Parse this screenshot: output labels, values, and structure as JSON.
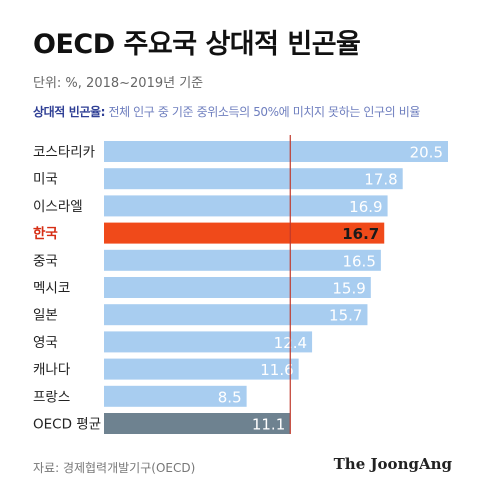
{
  "header": {
    "title": "OECD 주요국 상대적 빈곤율",
    "unit_note": "단위: %, 2018~2019년 기준",
    "definition_term": "상대적 빈곤율:",
    "definition_text": " 전체 인구 중 기준 중위소득의 50%에 미치지 못하는 인구의 비율"
  },
  "chart_data": {
    "type": "bar",
    "orientation": "horizontal",
    "title": "OECD 주요국 상대적 빈곤율",
    "xlabel": "",
    "ylabel": "",
    "xlim": [
      0,
      20.5
    ],
    "reference_line": {
      "value": 11.1,
      "color": "#c0392b"
    },
    "categories": [
      "코스타리카",
      "미국",
      "이스라엘",
      "한국",
      "중국",
      "멕시코",
      "일본",
      "영국",
      "캐나다",
      "프랑스",
      "OECD 평균"
    ],
    "values": [
      20.5,
      17.8,
      16.9,
      16.7,
      16.5,
      15.9,
      15.7,
      12.4,
      11.6,
      8.5,
      11.1
    ],
    "value_labels": [
      "20.5",
      "17.8",
      "16.9",
      "16.7",
      "16.5",
      "15.9",
      "15.7",
      "12.4",
      "11.6",
      "8.5",
      "11.1"
    ],
    "highlight": {
      "category": "한국",
      "color": "#f04a1a",
      "label_color": "#d62e14"
    },
    "average": {
      "category": "OECD 평균",
      "color": "#6e8290"
    },
    "bar_color": "#a8cdf0",
    "grid": false
  },
  "footer": {
    "source": "자료: 경제협력개발기구(OECD)",
    "brand": "The JoongAng"
  }
}
